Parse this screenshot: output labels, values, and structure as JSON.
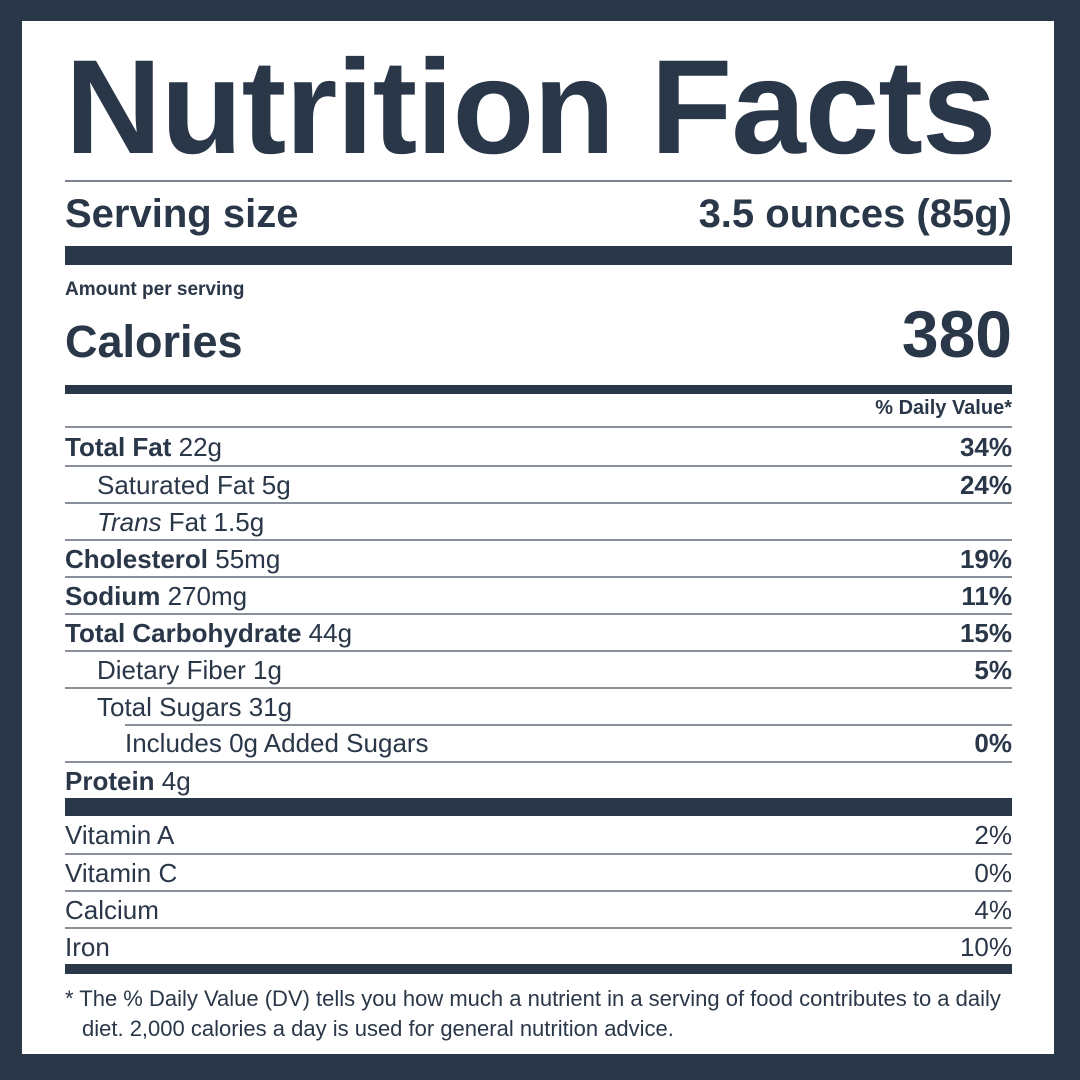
{
  "colors": {
    "navy": "#2a3748",
    "rule_gray": "#8a909a",
    "background": "#ffffff"
  },
  "header": {
    "title": "Nutrition Facts",
    "serving_label": "Serving size",
    "serving_value": "3.5 ounces (85g)",
    "amount_per_serving": "Amount per serving",
    "calories_label": "Calories",
    "calories_value": "380",
    "daily_value_header": "% Daily Value*"
  },
  "nutrients": [
    {
      "strong": "Total Fat",
      "plain": "22g",
      "dv": "34%",
      "indent": 0
    },
    {
      "plain": "Saturated Fat 5g",
      "dv": "24%",
      "indent": 1
    },
    {
      "italic": "Trans",
      "plain": "Fat 1.5g",
      "dv": "",
      "indent": 1
    },
    {
      "strong": "Cholesterol",
      "plain": "55mg",
      "dv": "19%",
      "indent": 0
    },
    {
      "strong": "Sodium",
      "plain": "270mg",
      "dv": "11%",
      "indent": 0
    },
    {
      "strong": "Total Carbohydrate",
      "plain": "44g",
      "dv": "15%",
      "indent": 0
    },
    {
      "plain": "Dietary Fiber 1g",
      "dv": "5%",
      "indent": 1
    },
    {
      "plain": "Total Sugars 31g",
      "dv": "",
      "indent": 1
    },
    {
      "plain": "Includes 0g Added Sugars",
      "dv": "0%",
      "indent": 2,
      "rule_indent": true
    },
    {
      "strong": "Protein",
      "plain": "4g",
      "dv": "",
      "indent": 0
    }
  ],
  "vitamins": [
    {
      "name": "Vitamin A",
      "dv": "2%"
    },
    {
      "name": "Vitamin C",
      "dv": "0%"
    },
    {
      "name": "Calcium",
      "dv": "4%"
    },
    {
      "name": "Iron",
      "dv": "10%"
    }
  ],
  "footnote": "* The % Daily Value (DV) tells you how much a nutrient in a serving of food contributes to a daily diet. 2,000 calories a day is used for general nutrition advice."
}
